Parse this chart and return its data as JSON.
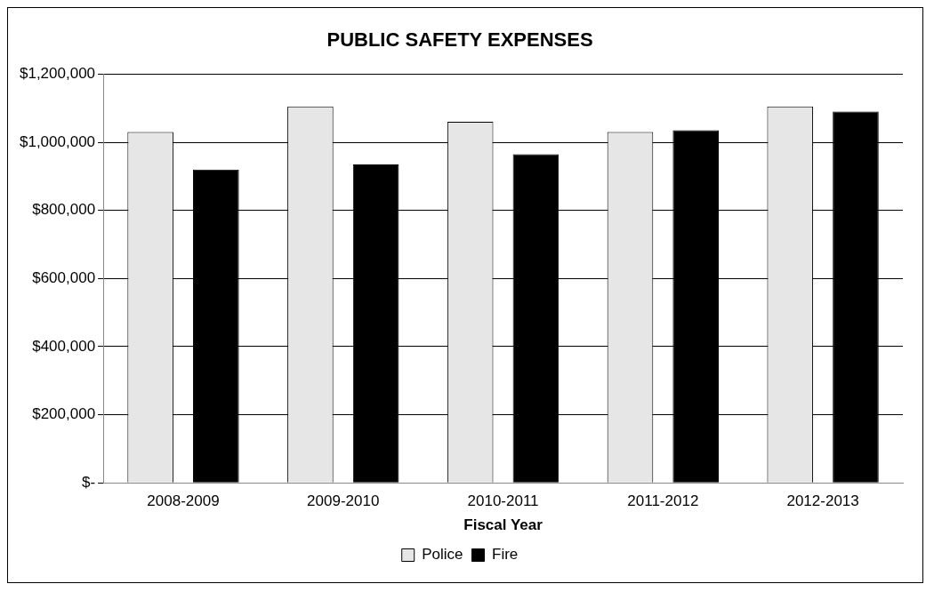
{
  "chart_data": {
    "type": "bar",
    "title": "PUBLIC SAFETY EXPENSES",
    "xlabel": "Fiscal Year",
    "categories": [
      "2008-2009",
      "2009-2010",
      "2010-2011",
      "2011-2012",
      "2012-2013"
    ],
    "series": [
      {
        "name": "Police",
        "color": "#e6e6e6",
        "values": [
          1030000,
          1105000,
          1060000,
          1030000,
          1105000
        ]
      },
      {
        "name": "Fire",
        "color": "#000000",
        "values": [
          920000,
          935000,
          965000,
          1035000,
          1090000
        ]
      }
    ],
    "ylim": [
      0,
      1200000
    ],
    "yticks": [
      {
        "value": 0,
        "label": "$-"
      },
      {
        "value": 200000,
        "label": "$200,000"
      },
      {
        "value": 400000,
        "label": "$400,000"
      },
      {
        "value": 600000,
        "label": "$600,000"
      },
      {
        "value": 800000,
        "label": "$800,000"
      },
      {
        "value": 1000000,
        "label": "$1,000,000"
      },
      {
        "value": 1200000,
        "label": "$1,200,000"
      }
    ],
    "grid": "y",
    "legend": "bottom"
  }
}
